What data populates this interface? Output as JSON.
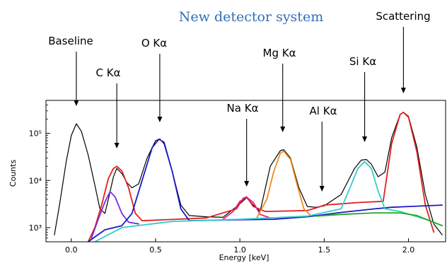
{
  "chart_data": {
    "type": "line",
    "title": "New detector system",
    "xlabel": "Energy [keV]",
    "ylabel": "Counts",
    "xlim": [
      -0.15,
      2.22
    ],
    "ylim": [
      500,
      500000
    ],
    "y_scale": "log",
    "grid": false,
    "x_ticks": [
      0.0,
      0.5,
      1.0,
      1.5,
      2.0
    ],
    "x_tick_labels": [
      "0.0",
      "0.5",
      "1.0",
      "1.5",
      "2.0"
    ],
    "y_ticks": [
      1000,
      10000,
      100000
    ],
    "y_tick_labels": [
      "10³",
      "10⁴",
      "10⁵"
    ],
    "annotations": [
      {
        "text": "Baseline",
        "x": 0.03
      },
      {
        "text": "C Kα",
        "x": 0.27
      },
      {
        "text": "O Kα",
        "x": 0.525
      },
      {
        "text": "Na Kα",
        "x": 1.04
      },
      {
        "text": "Mg Kα",
        "x": 1.254
      },
      {
        "text": "Al Kα",
        "x": 1.487
      },
      {
        "text": "Si Kα",
        "x": 1.74
      },
      {
        "text": "Scattering",
        "x": 1.97
      }
    ],
    "series": [
      {
        "color": "#000000",
        "points": [
          [
            -0.1,
            700
          ],
          [
            -0.07,
            3000
          ],
          [
            -0.03,
            25000
          ],
          [
            0.0,
            90000
          ],
          [
            0.03,
            160000
          ],
          [
            0.06,
            110000
          ],
          [
            0.1,
            35000
          ],
          [
            0.14,
            8000
          ],
          [
            0.17,
            2500
          ],
          [
            0.2,
            2000
          ],
          [
            0.22,
            4000
          ],
          [
            0.25,
            12000
          ],
          [
            0.27,
            18000
          ],
          [
            0.3,
            14000
          ],
          [
            0.33,
            9000
          ],
          [
            0.36,
            7000
          ],
          [
            0.4,
            8500
          ],
          [
            0.45,
            30000
          ],
          [
            0.5,
            70000
          ],
          [
            0.525,
            76000
          ],
          [
            0.55,
            60000
          ],
          [
            0.6,
            15000
          ],
          [
            0.65,
            3000
          ],
          [
            0.7,
            1800
          ],
          [
            0.8,
            1700
          ],
          [
            0.9,
            1650
          ],
          [
            1.0,
            3200
          ],
          [
            1.04,
            4300
          ],
          [
            1.08,
            3000
          ],
          [
            1.12,
            2200
          ],
          [
            1.18,
            20000
          ],
          [
            1.24,
            43000
          ],
          [
            1.26,
            45000
          ],
          [
            1.3,
            30000
          ],
          [
            1.35,
            7000
          ],
          [
            1.4,
            2800
          ],
          [
            1.45,
            2700
          ],
          [
            1.5,
            2900
          ],
          [
            1.6,
            5000
          ],
          [
            1.68,
            18000
          ],
          [
            1.72,
            27000
          ],
          [
            1.75,
            28000
          ],
          [
            1.78,
            22000
          ],
          [
            1.82,
            12000
          ],
          [
            1.86,
            15000
          ],
          [
            1.9,
            80000
          ],
          [
            1.95,
            250000
          ],
          [
            1.97,
            280000
          ],
          [
            2.0,
            230000
          ],
          [
            2.05,
            50000
          ],
          [
            2.1,
            5000
          ],
          [
            2.15,
            1200
          ],
          [
            2.2,
            700
          ]
        ]
      },
      {
        "color": "#e02020",
        "points": [
          [
            0.1,
            500
          ],
          [
            0.14,
            1000
          ],
          [
            0.18,
            3000
          ],
          [
            0.22,
            11000
          ],
          [
            0.25,
            18000
          ],
          [
            0.27,
            20000
          ],
          [
            0.3,
            16000
          ],
          [
            0.34,
            7000
          ],
          [
            0.38,
            2000
          ],
          [
            0.42,
            1400
          ],
          [
            0.8,
            1600
          ],
          [
            0.98,
            2500
          ],
          [
            1.02,
            4200
          ],
          [
            1.04,
            4500
          ],
          [
            1.08,
            2800
          ],
          [
            1.15,
            2200
          ],
          [
            1.4,
            2300
          ],
          [
            1.45,
            2600
          ],
          [
            1.5,
            3000
          ],
          [
            1.55,
            3100
          ],
          [
            1.6,
            3200
          ],
          [
            1.7,
            3400
          ],
          [
            1.85,
            3600
          ],
          [
            1.9,
            60000
          ],
          [
            1.95,
            250000
          ],
          [
            1.97,
            280000
          ],
          [
            2.0,
            220000
          ],
          [
            2.05,
            40000
          ],
          [
            2.1,
            3000
          ],
          [
            2.15,
            800
          ]
        ]
      },
      {
        "color": "#7b2ee0",
        "points": [
          [
            0.12,
            600
          ],
          [
            0.16,
            1500
          ],
          [
            0.2,
            3500
          ],
          [
            0.23,
            5800
          ],
          [
            0.26,
            4500
          ],
          [
            0.3,
            2000
          ],
          [
            0.34,
            1300
          ],
          [
            0.4,
            1200
          ]
        ]
      },
      {
        "color": "#1a1ac8",
        "points": [
          [
            0.1,
            500
          ],
          [
            0.2,
            900
          ],
          [
            0.3,
            1100
          ],
          [
            0.36,
            2000
          ],
          [
            0.42,
            10000
          ],
          [
            0.48,
            50000
          ],
          [
            0.52,
            75000
          ],
          [
            0.55,
            65000
          ],
          [
            0.6,
            15000
          ],
          [
            0.65,
            2500
          ],
          [
            0.7,
            1400
          ],
          [
            0.9,
            1450
          ],
          [
            1.2,
            1500
          ],
          [
            1.4,
            1700
          ],
          [
            1.6,
            2100
          ],
          [
            1.8,
            2500
          ],
          [
            1.9,
            2700
          ],
          [
            2.0,
            2800
          ],
          [
            2.1,
            2900
          ],
          [
            2.2,
            3000
          ]
        ]
      },
      {
        "color": "#e0208a",
        "points": [
          [
            0.9,
            1500
          ],
          [
            0.96,
            2200
          ],
          [
            1.0,
            3600
          ],
          [
            1.04,
            4400
          ],
          [
            1.08,
            3400
          ],
          [
            1.12,
            1900
          ],
          [
            1.18,
            1600
          ]
        ]
      },
      {
        "color": "#f08c1e",
        "points": [
          [
            1.1,
            1600
          ],
          [
            1.16,
            4000
          ],
          [
            1.2,
            15000
          ],
          [
            1.24,
            38000
          ],
          [
            1.26,
            42000
          ],
          [
            1.3,
            28000
          ],
          [
            1.34,
            8000
          ],
          [
            1.38,
            2500
          ],
          [
            1.42,
            1800
          ]
        ]
      },
      {
        "color": "#33cccc",
        "points": [
          [
            0.14,
            500
          ],
          [
            0.3,
            1000
          ],
          [
            0.6,
            1350
          ],
          [
            1.0,
            1500
          ],
          [
            1.4,
            1750
          ],
          [
            1.6,
            2500
          ],
          [
            1.66,
            8000
          ],
          [
            1.7,
            18000
          ],
          [
            1.74,
            25000
          ],
          [
            1.78,
            18000
          ],
          [
            1.82,
            6000
          ],
          [
            1.86,
            2500
          ],
          [
            1.95,
            2200
          ],
          [
            2.1,
            1500
          ],
          [
            2.2,
            1100
          ]
        ]
      },
      {
        "color": "#22aa22",
        "points": [
          [
            1.45,
            1750
          ],
          [
            1.6,
            1900
          ],
          [
            1.8,
            2050
          ],
          [
            1.95,
            2050
          ],
          [
            2.05,
            1800
          ],
          [
            2.15,
            1300
          ],
          [
            2.2,
            1100
          ]
        ]
      }
    ]
  }
}
